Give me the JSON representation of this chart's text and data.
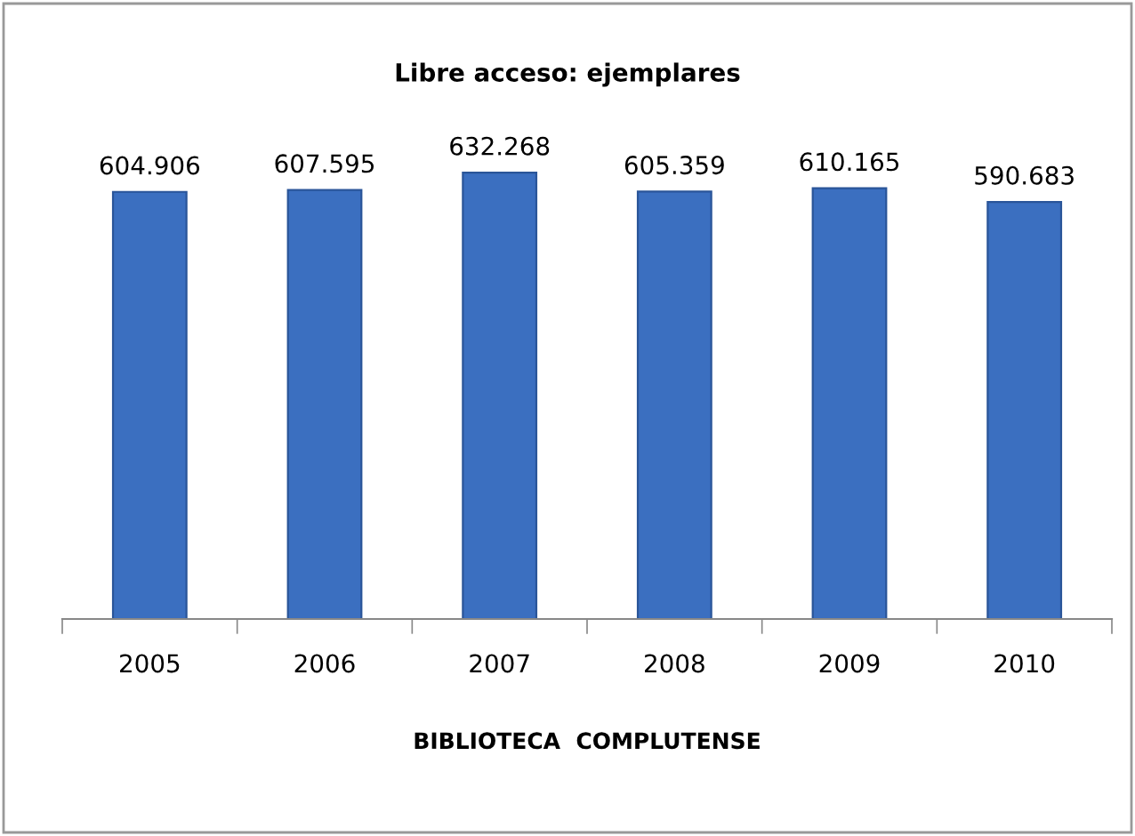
{
  "chart_data": {
    "type": "bar",
    "title": "Libre acceso: ejemplares",
    "xlabel": "BIBLIOTECA  COMPLUTENSE",
    "categories": [
      "2005",
      "2006",
      "2007",
      "2008",
      "2009",
      "2010"
    ],
    "values": [
      604906,
      607595,
      632268,
      605359,
      610165,
      590683
    ],
    "value_labels": [
      "604.906",
      "607.595",
      "632.268",
      "605.359",
      "610.165",
      "590.683"
    ],
    "color": "#3b6fc0",
    "tick_labels": "x",
    "grid": false,
    "legend": false
  }
}
